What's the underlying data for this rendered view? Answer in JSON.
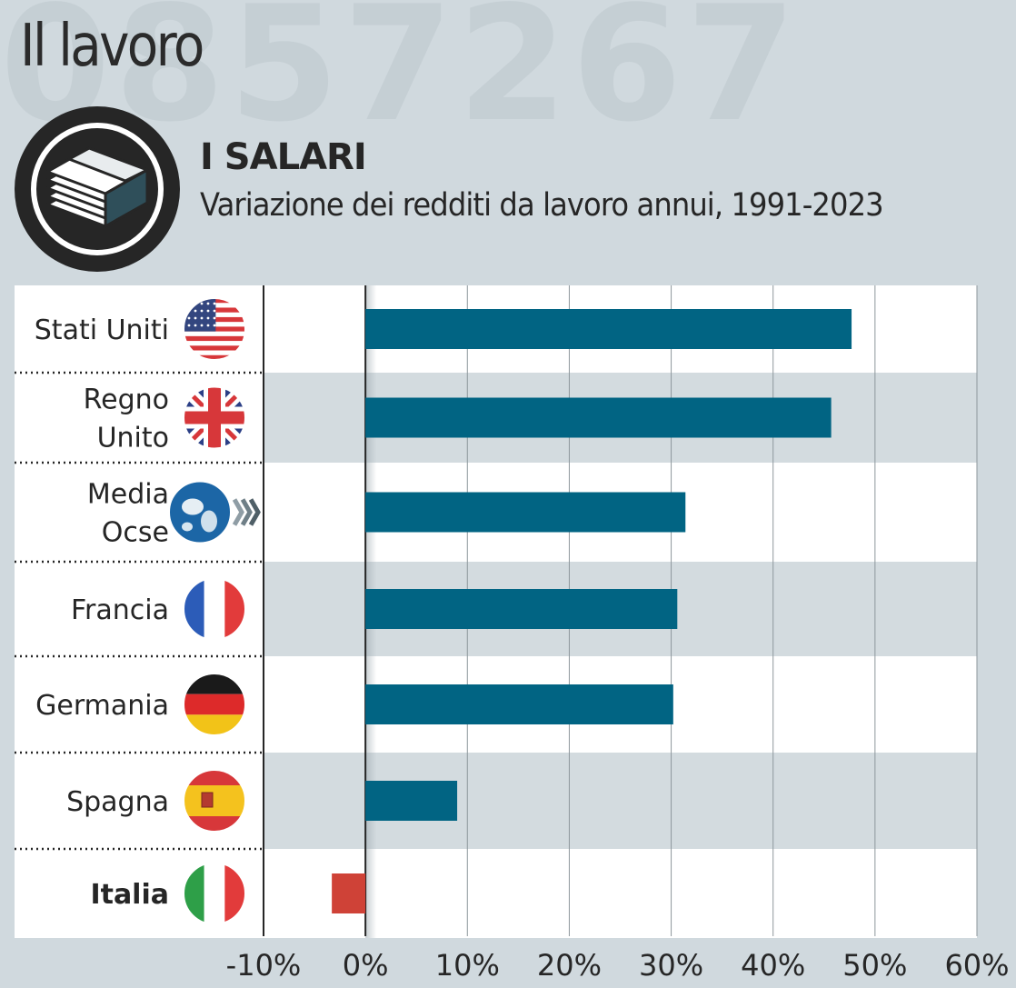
{
  "header": {
    "section_title": "Il lavoro",
    "watermark": "0857267"
  },
  "icon": "money-stack-icon",
  "colors": {
    "bar": "#016483",
    "negative_bar": "#cf4237",
    "background": "#d0d9de",
    "row_light": "#ffffff",
    "row_dark": "#d3dbdf"
  },
  "chart_data": {
    "type": "bar",
    "orientation": "horizontal",
    "title": "I SALARI",
    "subtitle": "Variazione dei redditi da lavoro annui, 1991-2023",
    "categories": [
      {
        "label_lines": [
          "Stati Uniti"
        ],
        "flag": "usa-flag-icon",
        "bold": false
      },
      {
        "label_lines": [
          "Regno",
          "Unito"
        ],
        "flag": "uk-flag-icon",
        "bold": false
      },
      {
        "label_lines": [
          "Media",
          "Ocse"
        ],
        "flag": "oecd-globe-icon",
        "bold": false
      },
      {
        "label_lines": [
          "Francia"
        ],
        "flag": "france-flag-icon",
        "bold": false
      },
      {
        "label_lines": [
          "Germania"
        ],
        "flag": "germany-flag-icon",
        "bold": false
      },
      {
        "label_lines": [
          "Spagna"
        ],
        "flag": "spain-flag-icon",
        "bold": false
      },
      {
        "label_lines": [
          "Italia"
        ],
        "flag": "italy-flag-icon",
        "bold": true
      }
    ],
    "values": [
      47.7,
      45.7,
      31.4,
      30.6,
      30.2,
      9.0,
      -3.3
    ],
    "xlim": [
      -10,
      60
    ],
    "xticks": [
      -10,
      0,
      10,
      20,
      30,
      40,
      50,
      60
    ],
    "tick_labels": [
      "-10%",
      "0%",
      "10%",
      "20%",
      "30%",
      "40%",
      "50%",
      "60%"
    ],
    "grid": true,
    "xlabel": "",
    "ylabel": ""
  }
}
